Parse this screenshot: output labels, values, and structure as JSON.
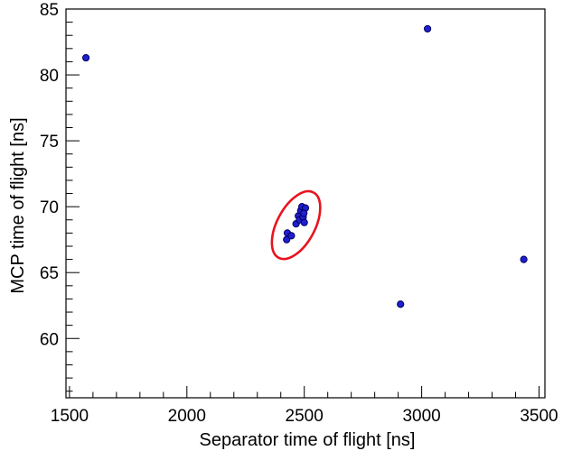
{
  "chart_data": {
    "type": "scatter",
    "title": "",
    "xlabel": "Separator time of flight [ns]",
    "ylabel": "MCP time of flight [ns]",
    "xlim": [
      1485,
      3525
    ],
    "ylim": [
      55.5,
      85
    ],
    "xticks": [
      1500,
      2000,
      2500,
      3000,
      3500
    ],
    "yticks": [
      60,
      65,
      70,
      75,
      80,
      85
    ],
    "xtick_labels": [
      "1500",
      "2000",
      "2500",
      "3000",
      "3500"
    ],
    "ytick_labels": [
      "60",
      "65",
      "70",
      "75",
      "80",
      "85"
    ],
    "grid": false,
    "marker_color": "#1f1fd0",
    "marker_edge_color": "#000060",
    "highlight_color": "#e8141e",
    "points": [
      {
        "x": 1570,
        "y": 81.3
      },
      {
        "x": 3025,
        "y": 83.5
      },
      {
        "x": 3435,
        "y": 66.0
      },
      {
        "x": 2910,
        "y": 62.6
      },
      {
        "x": 2425,
        "y": 67.5
      },
      {
        "x": 2428,
        "y": 68.0
      },
      {
        "x": 2445,
        "y": 67.8
      },
      {
        "x": 2465,
        "y": 68.7
      },
      {
        "x": 2475,
        "y": 69.3
      },
      {
        "x": 2480,
        "y": 69.0
      },
      {
        "x": 2485,
        "y": 69.7
      },
      {
        "x": 2490,
        "y": 70.0
      },
      {
        "x": 2495,
        "y": 69.2
      },
      {
        "x": 2500,
        "y": 68.8
      },
      {
        "x": 2505,
        "y": 69.9
      },
      {
        "x": 2498,
        "y": 69.5
      }
    ],
    "highlight_ellipse": {
      "cx": 2465,
      "cy": 68.6,
      "rx": 105,
      "ry": 2.6,
      "note_shape": "ellipse"
    }
  }
}
